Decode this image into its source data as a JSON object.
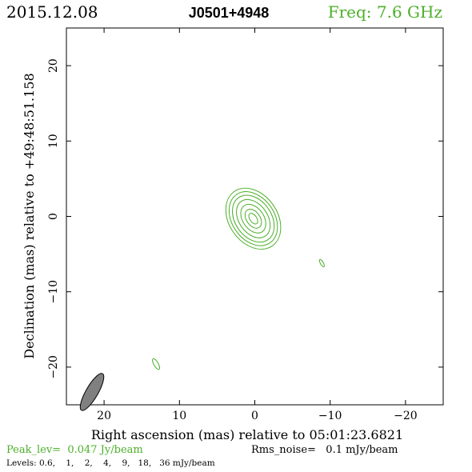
{
  "header": {
    "date": "2015.12.08",
    "source": "J0501+4948",
    "freq": "Freq: 7.6 GHz"
  },
  "footer": {
    "peak": "Peak_lev=  0.047 Jy/beam",
    "rms": "Rms_noise=   0.1 mJy/beam",
    "levels": "Levels: 0.6,    1,    2,    4,    9,   18,   36 mJy/beam"
  },
  "colors": {
    "contour": "#4caf2a",
    "beam_fill": "#808080",
    "axes": "#000000"
  },
  "chart_data": {
    "type": "contour",
    "xlabel": "Right ascension (mas) relative to 05:01:23.6821",
    "ylabel": "Declination (mas) relative to +49:48:51.158",
    "xlim": [
      25,
      -25
    ],
    "ylim": [
      -25,
      25
    ],
    "x_ticks": [
      20,
      10,
      0,
      -10,
      -20
    ],
    "y_ticks": [
      20,
      10,
      0,
      -10,
      -20
    ],
    "x_tick_labels": [
      "20",
      "10",
      "0",
      "−10",
      "−20"
    ],
    "y_tick_labels": [
      "20",
      "10",
      "0",
      "−10",
      "−20"
    ],
    "contour_levels_mJy": [
      0.6,
      1,
      2,
      4,
      9,
      18,
      36
    ],
    "components": [
      {
        "name": "core",
        "center": [
          0.2,
          -0.3
        ],
        "contours": [
          {
            "rx": 3.2,
            "ry": 4.4,
            "angle": -35
          },
          {
            "rx": 2.8,
            "ry": 3.9,
            "angle": -35
          },
          {
            "rx": 2.4,
            "ry": 3.4,
            "angle": -35
          },
          {
            "rx": 1.9,
            "ry": 2.8,
            "angle": -35
          },
          {
            "rx": 1.4,
            "ry": 2.1,
            "angle": -35
          },
          {
            "rx": 0.9,
            "ry": 1.4,
            "angle": -35
          },
          {
            "rx": 0.45,
            "ry": 0.8,
            "angle": -35
          }
        ]
      },
      {
        "name": "blob-east",
        "center": [
          13.1,
          -19.6
        ],
        "contours": [
          {
            "rx": 0.3,
            "ry": 0.8,
            "angle": -30
          }
        ]
      },
      {
        "name": "blob-west",
        "center": [
          -8.9,
          -6.2
        ],
        "contours": [
          {
            "rx": 0.2,
            "ry": 0.55,
            "angle": -30
          }
        ]
      }
    ],
    "beam": {
      "center": [
        21.6,
        -23.3
      ],
      "major": 2.8,
      "minor": 0.8,
      "pa_deg": -30
    }
  }
}
